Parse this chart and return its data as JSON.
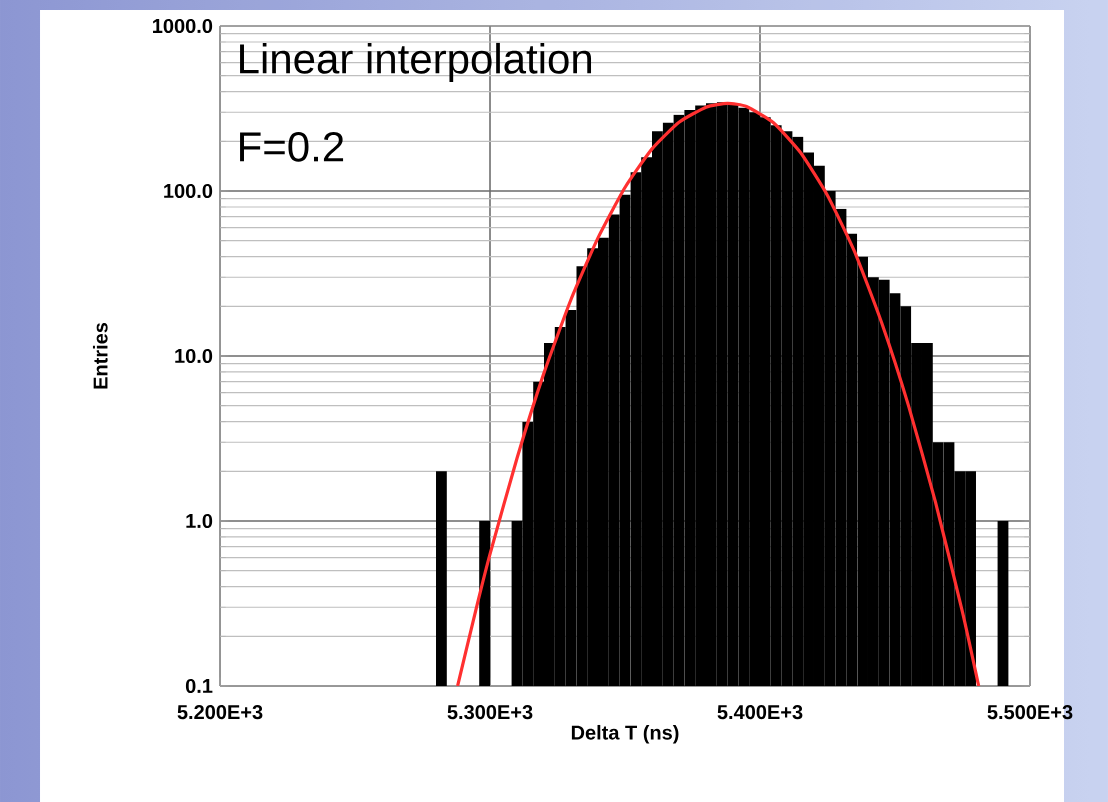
{
  "chart_data": {
    "type": "histogram",
    "xlabel": "Delta T (ns)",
    "ylabel": "Entries",
    "annotations": [
      "Linear interpolation",
      "F=0.2"
    ],
    "xlim": [
      5200,
      5500
    ],
    "ylim": [
      0.1,
      1000
    ],
    "log": "y",
    "grid": true,
    "xticks": [
      {
        "value": 5200,
        "label": "5.200E+3"
      },
      {
        "value": 5300,
        "label": "5.300E+3"
      },
      {
        "value": 5400,
        "label": "5.400E+3"
      },
      {
        "value": 5500,
        "label": "5.500E+3"
      }
    ],
    "yticks": [
      {
        "value": 0.1,
        "label": "0.1"
      },
      {
        "value": 1,
        "label": "1.0"
      },
      {
        "value": 10,
        "label": "10.0"
      },
      {
        "value": 100,
        "label": "100.0"
      },
      {
        "value": 1000,
        "label": "1000.0"
      }
    ],
    "series": [
      {
        "color": "#000000",
        "bins": [
          5280,
          5284,
          5288,
          5292,
          5296,
          5300,
          5304,
          5308,
          5312,
          5316,
          5320,
          5324,
          5328,
          5332,
          5336,
          5340,
          5344,
          5348,
          5352,
          5356,
          5360,
          5364,
          5368,
          5372,
          5376,
          5380,
          5384,
          5388,
          5392,
          5396,
          5400,
          5404,
          5408,
          5412,
          5416,
          5420,
          5424,
          5428,
          5432,
          5436,
          5440,
          5444,
          5448,
          5452,
          5456,
          5460,
          5464,
          5468,
          5472,
          5476,
          5480,
          5484,
          5488,
          5492
        ],
        "values": [
          2,
          null,
          null,
          null,
          1,
          null,
          null,
          1,
          4,
          7,
          12,
          15,
          19,
          35,
          45,
          52,
          72,
          95,
          130,
          160,
          230,
          260,
          290,
          310,
          330,
          340,
          345,
          340,
          320,
          300,
          280,
          250,
          230,
          213,
          171,
          142,
          100,
          78,
          55,
          40,
          30,
          29,
          24,
          20,
          12,
          12,
          3,
          3,
          2,
          2,
          null,
          null,
          1
        ]
      },
      {
        "type": "line",
        "color": "#ff3030",
        "x": [
          5288,
          5295,
          5300,
          5310,
          5320,
          5330,
          5340,
          5350,
          5360,
          5370,
          5380,
          5388,
          5395,
          5405,
          5415,
          5425,
          5435,
          5445,
          5455,
          5465,
          5475,
          5481
        ],
        "values": [
          0.1,
          0.3,
          0.63,
          2.4,
          7.9,
          22,
          52,
          105,
          180,
          261,
          322,
          340,
          325,
          259,
          171,
          94,
          43,
          16,
          5,
          1.3,
          0.28,
          0.1
        ]
      }
    ]
  }
}
